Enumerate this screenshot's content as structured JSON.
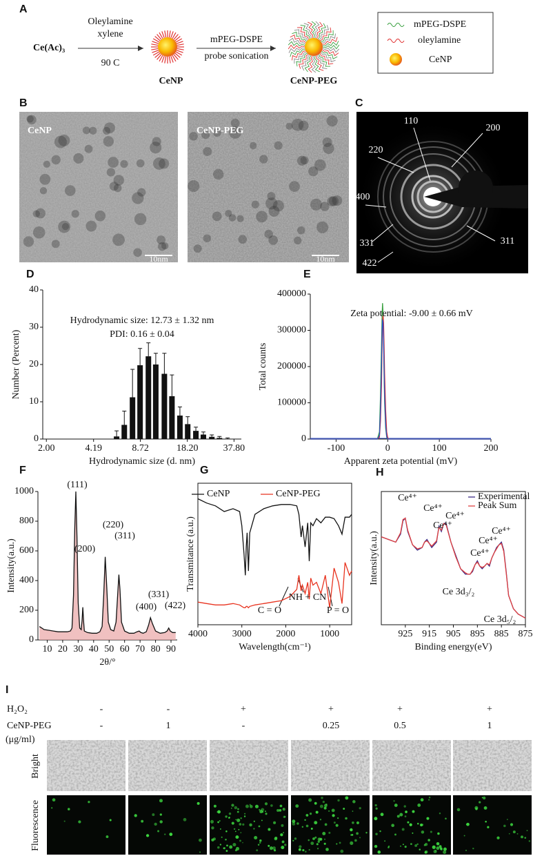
{
  "panel_labels": [
    "A",
    "B",
    "C",
    "D",
    "E",
    "F",
    "G",
    "H",
    "I"
  ],
  "scheme": {
    "reactant": "Ce(Ac)₃",
    "reagents": [
      "Oleylamine",
      "xylene"
    ],
    "condition": "90  C",
    "step2": [
      "mPEG-DSPE",
      "probe sonication"
    ],
    "products": [
      "CeNP",
      "CeNP-PEG"
    ],
    "legend": [
      "mPEG-DSPE",
      "oleylamine",
      "CeNP"
    ]
  },
  "tem": {
    "labels": [
      "CeNP",
      "CeNP-PEG"
    ],
    "scale_bars": [
      "10nm",
      "10nm"
    ]
  },
  "saed": {
    "rings": [
      "110",
      "200",
      "220",
      "400",
      "331",
      "311",
      "422"
    ]
  },
  "chart_data": [
    {
      "type": "bar",
      "x_scale": "log",
      "annotations": [
        "Hydrodynamic size: 12.73 ± 1.32 nm",
        "PDI: 0.16 ± 0.04"
      ],
      "x_label": "Hydrodynamic size (d. nm)",
      "y_label": "Number (Percent)",
      "x": [
        6.01,
        6.78,
        7.71,
        8.68,
        9.89,
        11.1,
        12.7,
        14.3,
        16.2,
        18.3,
        20.8,
        23.4,
        26.7,
        30.1,
        34.2
      ],
      "values": [
        0.7,
        3.8,
        11.2,
        19.8,
        22.2,
        20,
        17.5,
        11.5,
        6.3,
        4.0,
        2.2,
        1.2,
        0.6,
        0.3,
        0.1
      ],
      "errors": [
        1.5,
        3.7,
        7.5,
        4.5,
        3.6,
        3,
        5.5,
        5.7,
        2.3,
        2,
        1,
        0.7,
        0.5,
        0.4,
        0.2
      ],
      "color": "#111111",
      "xlim": [
        1.89,
        42.4
      ],
      "xticks": [
        {
          "value": 2,
          "label": "2.00"
        },
        4.19,
        8.72,
        {
          "value": 18.2,
          "label": "18.20"
        },
        {
          "value": 37.8,
          "label": "37.80"
        }
      ],
      "ylim": [
        0,
        40
      ],
      "yticks": [
        0,
        10,
        20,
        30,
        40
      ],
      "frame": "axes"
    },
    {
      "type": "line",
      "annotations": [
        "Zeta potential: -9.00 ± 0.66 mV"
      ],
      "x_label": "Apparent zeta potential (mV)",
      "y_label": "Total counts",
      "x": [
        -150,
        -30,
        -20,
        -16,
        -14,
        -12,
        -11,
        -10,
        -9,
        -8,
        -7,
        -6,
        -4,
        -2,
        0,
        2,
        10,
        200
      ],
      "series": [
        {
          "color": "#3aa040",
          "values": [
            0,
            0,
            0,
            20000,
            120000,
            260000,
            340000,
            375000,
            350000,
            280000,
            180000,
            100000,
            30000,
            5000,
            0,
            0,
            0,
            0
          ]
        },
        {
          "color": "#e03030",
          "values": [
            0,
            0,
            0,
            5000,
            50000,
            150000,
            250000,
            320000,
            340000,
            320000,
            260000,
            180000,
            80000,
            20000,
            4000,
            0,
            0,
            0
          ]
        },
        {
          "color": "#3050c0",
          "values": [
            0,
            0,
            0,
            10000,
            80000,
            200000,
            300000,
            330000,
            320000,
            270000,
            200000,
            120000,
            40000,
            8000,
            0,
            0,
            0,
            0
          ]
        }
      ],
      "xlim": [
        -150,
        200
      ],
      "xticks": [
        -100,
        0,
        100,
        200
      ],
      "ylim": [
        0,
        400000
      ],
      "yticks": [
        0,
        100000,
        200000,
        300000,
        400000
      ],
      "frame": "axes"
    },
    {
      "type": "line",
      "annotations": [
        "(111)",
        "(200)",
        "(220)",
        "(311)",
        "(400)",
        "(331)",
        "(422)"
      ],
      "x_label": "2θ/°",
      "y_label": "Intensity(a.u.)",
      "x": [
        5,
        8,
        11,
        14,
        17,
        20,
        23,
        25,
        26,
        27,
        27.8,
        28.5,
        29.2,
        30,
        31,
        32,
        32.5,
        33,
        33.5,
        34,
        36,
        39,
        42,
        44,
        45.5,
        46.5,
        47.5,
        48.5,
        49.5,
        51,
        53,
        54.5,
        55.5,
        56.3,
        57,
        58,
        60,
        63,
        66,
        68,
        69.4,
        70.5,
        72,
        74,
        75.5,
        76.7,
        78,
        80,
        83,
        86,
        87.5,
        88.5,
        89.5,
        91,
        93
      ],
      "series": [
        {
          "color": "#111111",
          "area_color": "#e9a5a5",
          "values": [
            90,
            70,
            65,
            60,
            55,
            55,
            55,
            60,
            80,
            300,
            750,
            1000,
            700,
            250,
            80,
            70,
            130,
            220,
            130,
            60,
            50,
            45,
            45,
            55,
            90,
            300,
            560,
            350,
            120,
            70,
            60,
            120,
            300,
            440,
            340,
            120,
            60,
            45,
            45,
            55,
            60,
            50,
            45,
            55,
            100,
            150,
            110,
            60,
            45,
            50,
            60,
            80,
            60,
            50,
            50
          ]
        }
      ],
      "xlim": [
        4,
        94
      ],
      "xticks": [
        10,
        20,
        30,
        40,
        50,
        60,
        70,
        80,
        90
      ],
      "ylim": [
        0,
        1000
      ],
      "yticks": [
        0,
        200,
        400,
        600,
        800,
        1000
      ],
      "frame": "axes"
    },
    {
      "type": "line",
      "annotations": [
        "C = O",
        "NH + CN",
        "P = O"
      ],
      "x_label": "Wavelength(cm⁻¹)",
      "y_label": "Transmitance (a.u.)",
      "x": [
        4000,
        3800,
        3600,
        3400,
        3200,
        3050,
        3000,
        2950,
        2920,
        2900,
        2880,
        2850,
        2820,
        2700,
        2500,
        2300,
        2100,
        1900,
        1750,
        1700,
        1650,
        1620,
        1560,
        1500,
        1465,
        1430,
        1380,
        1300,
        1200,
        1100,
        1000,
        900,
        800,
        720,
        650,
        550,
        500
      ],
      "series": [
        {
          "name": "CeNP",
          "color": "#111111",
          "values": [
            89,
            86,
            84,
            80,
            82,
            80,
            70,
            50,
            35,
            55,
            65,
            38,
            65,
            78,
            82,
            84,
            85,
            85,
            84,
            78,
            62,
            70,
            55,
            72,
            45,
            72,
            70,
            75,
            72,
            76,
            76,
            75,
            70,
            64,
            76,
            76,
            78
          ]
        },
        {
          "name": "CeNP-PEG",
          "color": "#e8321e",
          "values": [
            16,
            15,
            14,
            14,
            15,
            14,
            13,
            12,
            12,
            13,
            13,
            12,
            13,
            14,
            15,
            16,
            17,
            20,
            25,
            35,
            24,
            28,
            22,
            30,
            18,
            33,
            28,
            30,
            22,
            35,
            12,
            40,
            30,
            15,
            44,
            35,
            38
          ]
        }
      ],
      "legend": "top",
      "xlim": [
        4000,
        500
      ],
      "xticks": [
        4000,
        3000,
        2000,
        1000
      ],
      "ylim": [
        0,
        100
      ],
      "frame": "box"
    },
    {
      "type": "line",
      "annotations": [
        "Ce⁴⁺",
        "Ce⁴⁺",
        "Ce⁴⁺",
        "Ce⁴⁺",
        "Ce⁴⁺",
        "Ce⁴⁺",
        "Ce⁴⁺",
        "Ce 3d₃/₂",
        "Ce 3d₅/₂"
      ],
      "x_label": "Binding energy(eV)",
      "y_label": "Intensity(a.u.)",
      "x": [
        935,
        932,
        929,
        927,
        926,
        925,
        924,
        922,
        920,
        918,
        917,
        916,
        914,
        912,
        911,
        910,
        909,
        908,
        906,
        904,
        902,
        900,
        899,
        898,
        897,
        896,
        895,
        894,
        893,
        892,
        891,
        890,
        889,
        888,
        887,
        886,
        885,
        884,
        883,
        882,
        880,
        878,
        876,
        875
      ],
      "series": [
        {
          "name": "Experimental",
          "color": "#3b2a85",
          "values": [
            66,
            64,
            62,
            68,
            78,
            80,
            70,
            60,
            56,
            58,
            62,
            64,
            58,
            62,
            74,
            70,
            76,
            76,
            62,
            52,
            42,
            38,
            38,
            38,
            40,
            45,
            48,
            44,
            42,
            44,
            46,
            44,
            50,
            54,
            58,
            60,
            62,
            56,
            40,
            22,
            12,
            8,
            6,
            5
          ]
        },
        {
          "name": "Peak Sum",
          "color": "#e04040",
          "values": [
            66,
            64,
            62,
            69,
            79,
            80,
            71,
            60,
            57,
            58,
            62,
            63,
            59,
            63,
            73,
            71,
            76,
            75,
            62,
            51,
            42,
            39,
            38,
            38,
            41,
            45,
            47,
            44,
            43,
            44,
            46,
            45,
            50,
            54,
            57,
            60,
            61,
            55,
            39,
            22,
            12,
            8,
            6,
            5
          ]
        }
      ],
      "legend": "top-right",
      "xlim": [
        935,
        875
      ],
      "xticks": [
        925,
        915,
        905,
        895,
        885,
        875
      ],
      "ylim": [
        0,
        100
      ],
      "frame": "box"
    }
  ],
  "cell_assay": {
    "rows": [
      {
        "label": "H₂O₂",
        "values": [
          "-",
          "-",
          "+",
          "+",
          "+",
          "+"
        ]
      },
      {
        "label": "CeNP-PEG",
        "values": [
          "-",
          1,
          "-",
          0.25,
          0.5,
          1
        ]
      }
    ],
    "unit": "(μg/ml)",
    "image_rows": [
      "Bright",
      "Fluorescence"
    ]
  }
}
